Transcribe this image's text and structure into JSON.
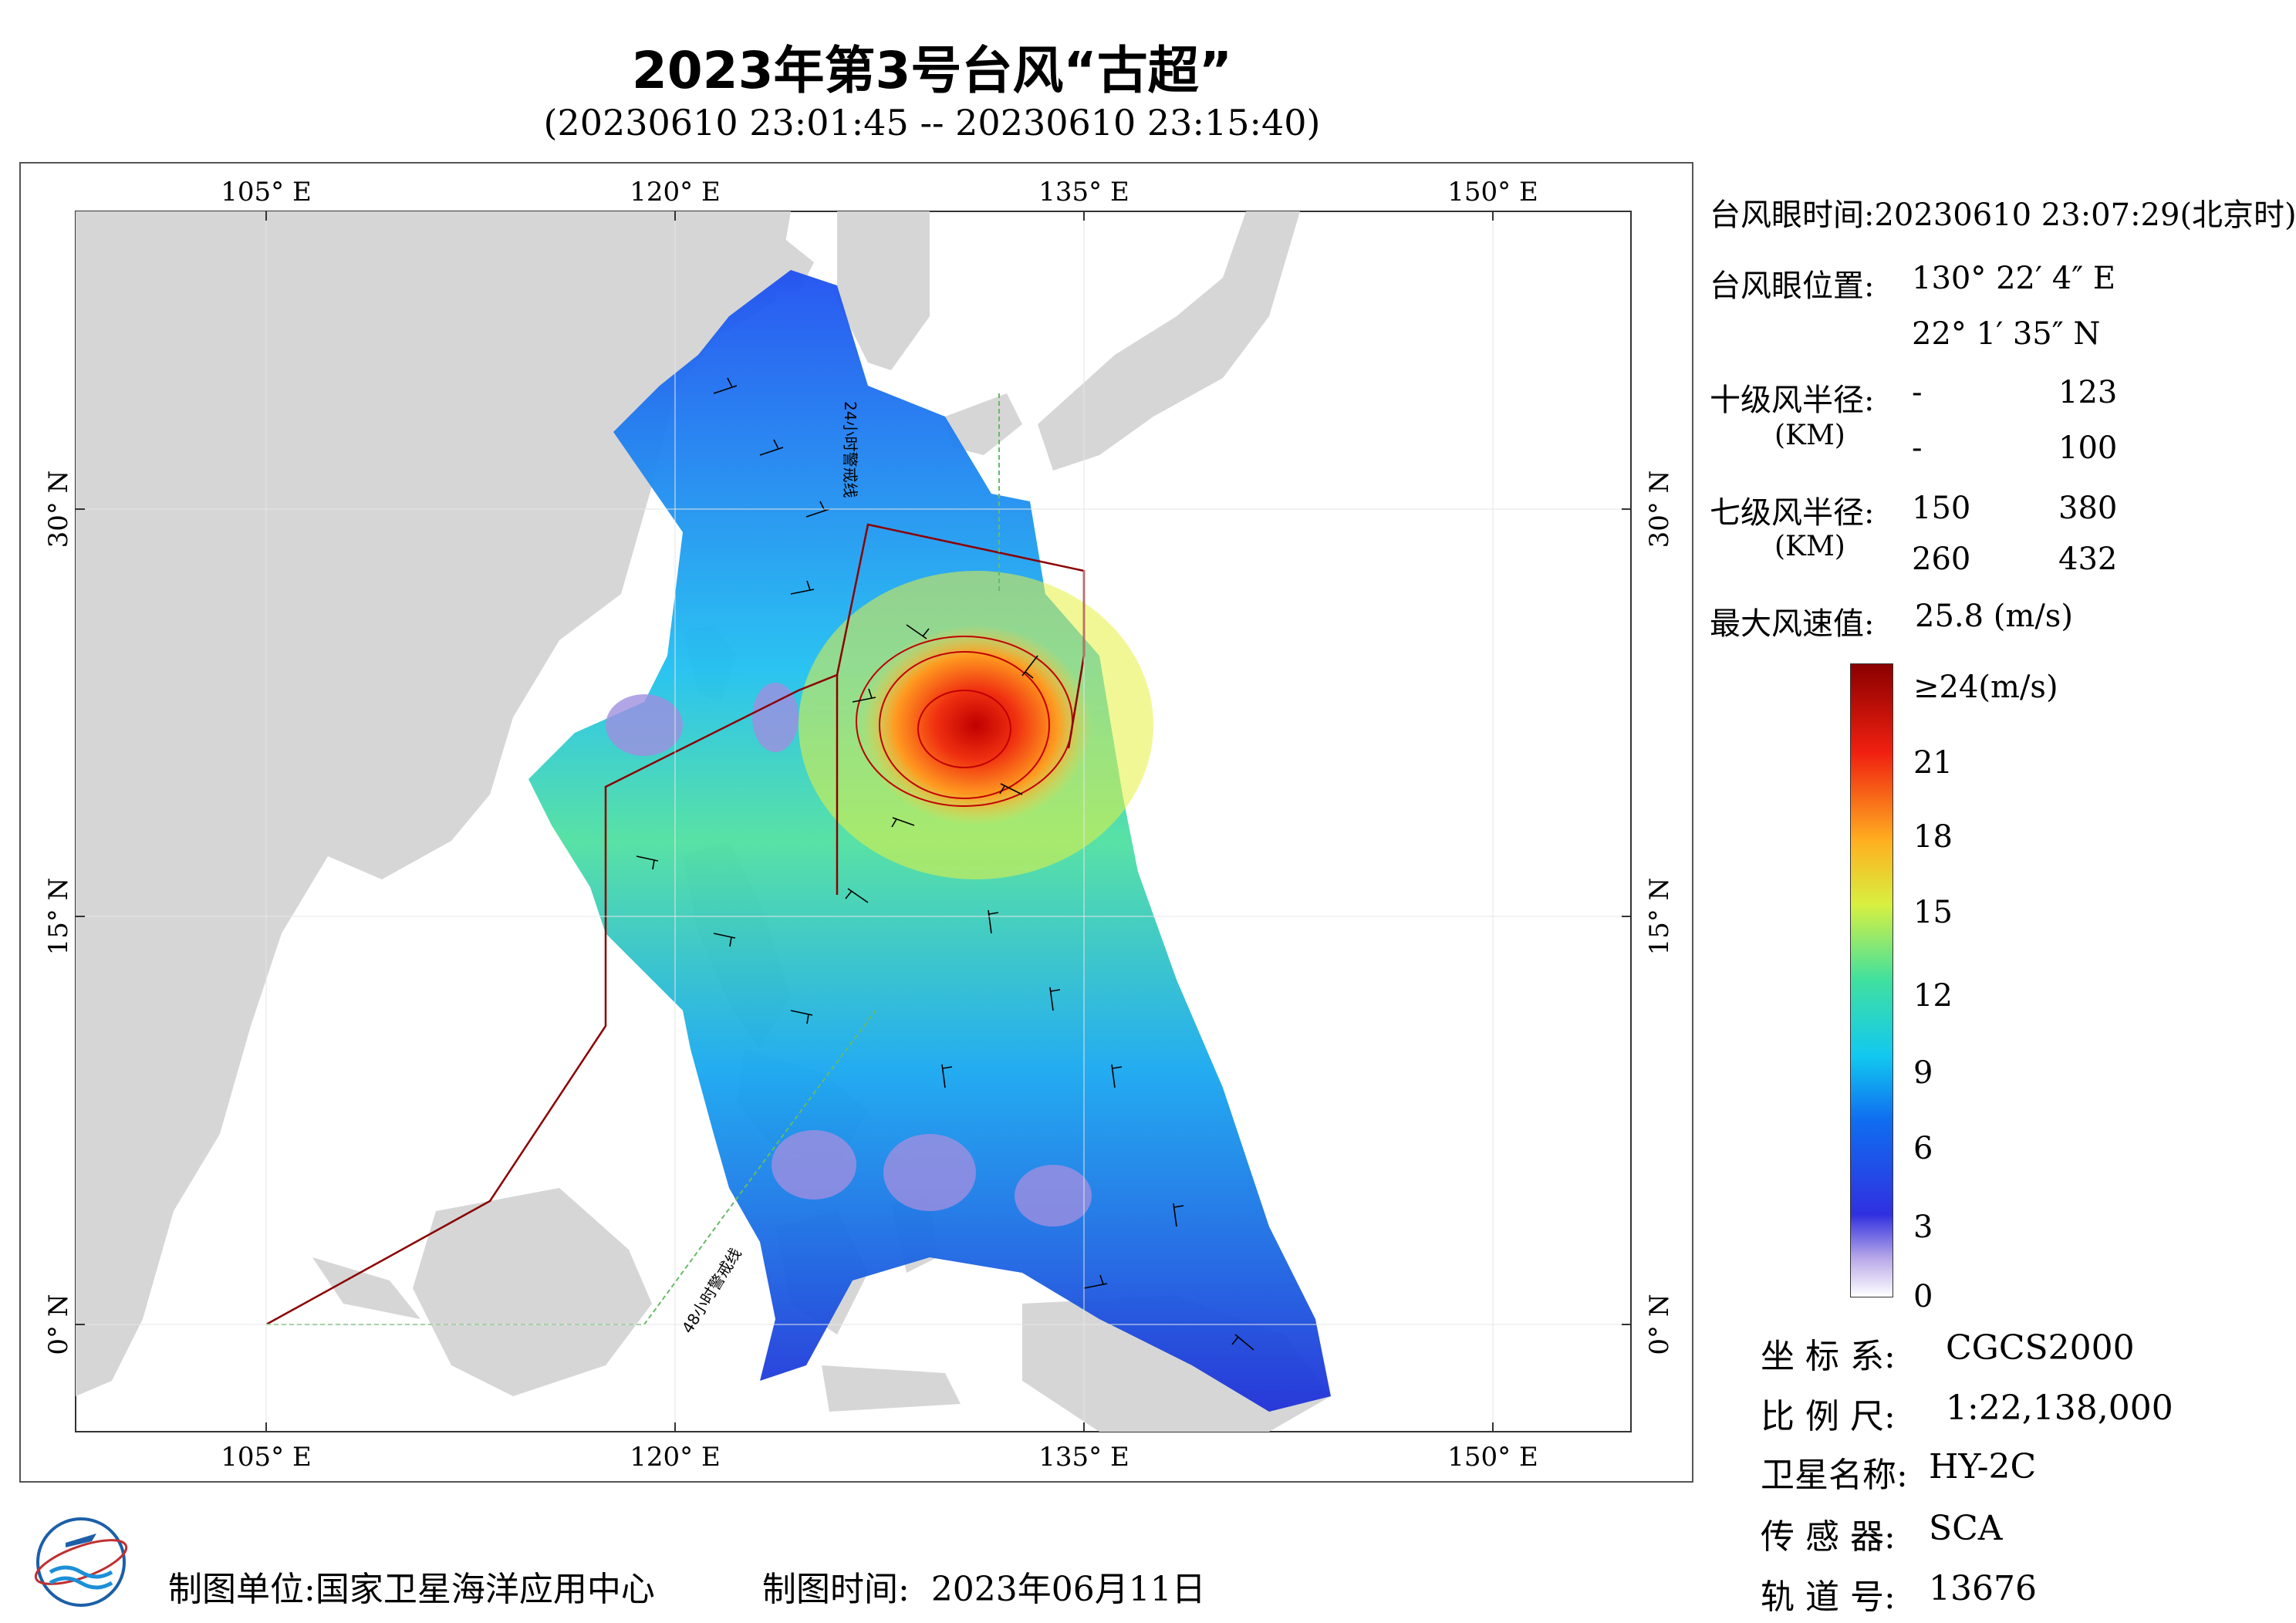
{
  "header": {
    "title": "2023年第3号台风“古超”",
    "time_range": "(20230610 23:01:45 -- 20230610 23:15:40)"
  },
  "map": {
    "lon_ticks_top": [
      "105° E",
      "120° E",
      "135° E",
      "150° E"
    ],
    "lon_ticks_bottom": [
      "105° E",
      "120° E",
      "135° E",
      "150° E"
    ],
    "lat_ticks_left": [
      "30° N",
      "15° N",
      "0° N"
    ],
    "lat_ticks_right": [
      "30° N",
      "15° N",
      "0° N"
    ],
    "line_label_24h": "24小时警戒线",
    "line_label_48h": "48小时警戒线",
    "colors": {
      "land": "#d6d6d6",
      "ocean": "#ffffff",
      "warning_48h": "#8b0000",
      "warning_24h": "#66bb66"
    }
  },
  "info": {
    "eye_time_label": "台风眼时间:",
    "eye_time_value": "20230610 23:07:29(北京时)",
    "eye_pos_label": "台风眼位置:",
    "eye_lon": "130° 22′ 4″ E",
    "eye_lat": "22° 1′ 35″ N",
    "r10_label": "十级风半径:",
    "r10_unit": "(KM)",
    "r10_row1": [
      "-",
      "123"
    ],
    "r10_row2": [
      "-",
      "100"
    ],
    "r7_label": "七级风半径:",
    "r7_unit": "(KM)",
    "r7_row1": [
      "150",
      "380"
    ],
    "r7_row2": [
      "260",
      "432"
    ],
    "max_wind_label": "最大风速值:",
    "max_wind_value": "25.8 (m/s)"
  },
  "colorbar": {
    "labels": [
      "≥24(m/s)",
      "21",
      "18",
      "15",
      "12",
      "9",
      "6",
      "3",
      "0"
    ]
  },
  "meta": {
    "coord_label": "坐 标 系:",
    "coord_value": "CGCS2000",
    "scale_label": "比 例 尺:",
    "scale_value": "1:22,138,000",
    "sat_label": "卫星名称:",
    "sat_value": "HY-2C",
    "sensor_label": "传 感 器:",
    "sensor_value": "SCA",
    "orbit_label": "轨 道 号:",
    "orbit_value": "13676"
  },
  "footer": {
    "unit_label": "制图单位:",
    "unit_value": "国家卫星海洋应用中心",
    "time_label": "制图时间:",
    "time_value": "2023年06月11日"
  }
}
